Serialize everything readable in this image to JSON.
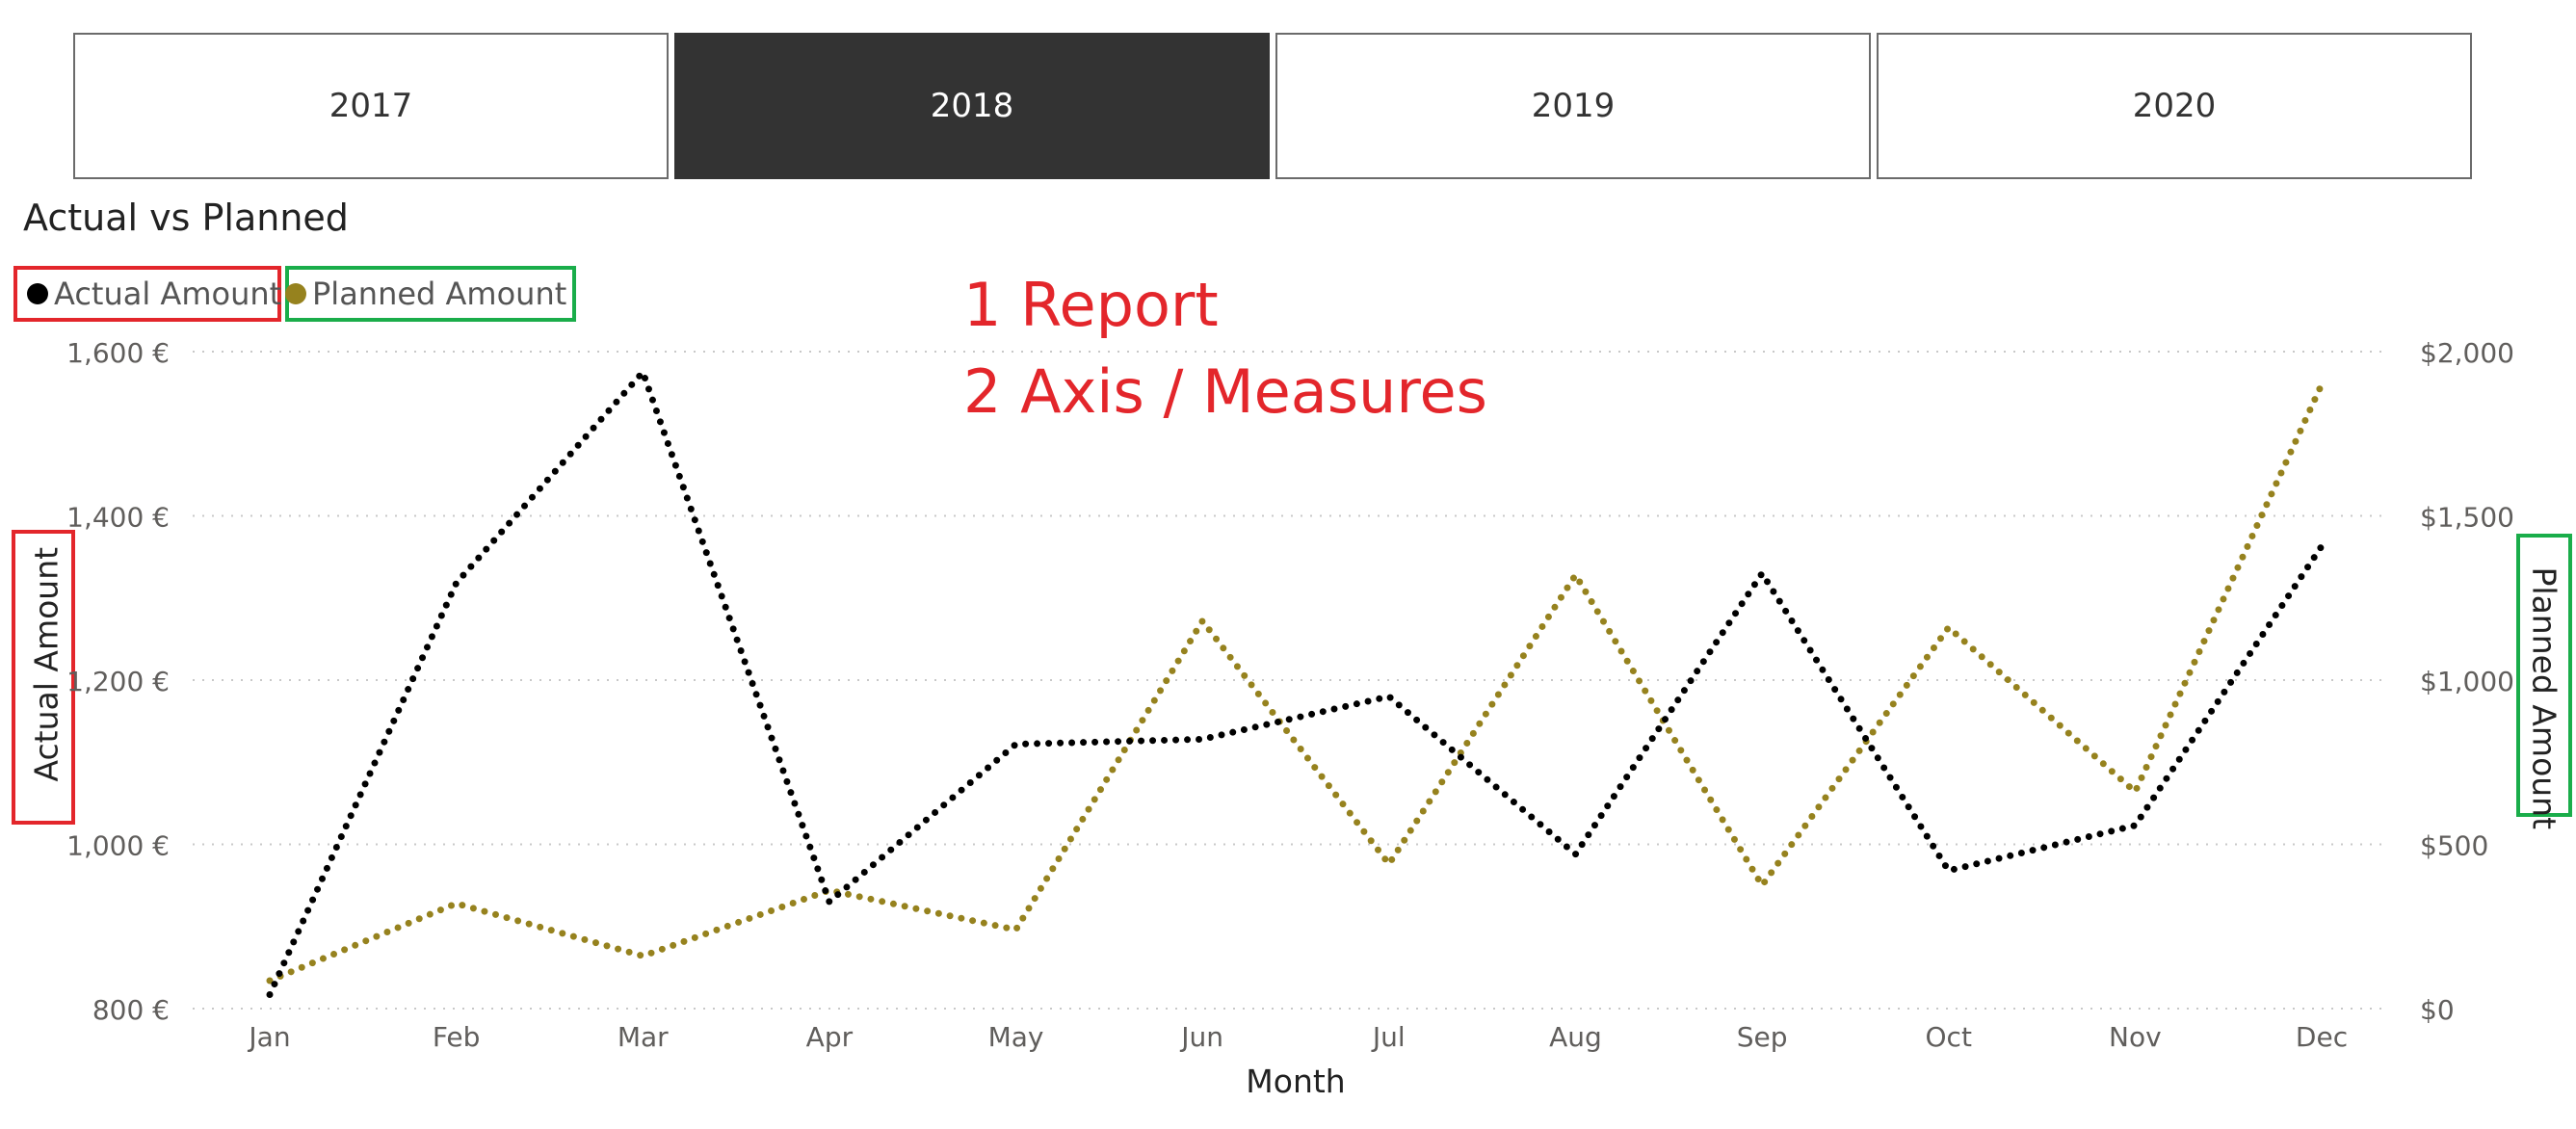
{
  "slicer": {
    "years": [
      "2017",
      "2018",
      "2019",
      "2020"
    ],
    "selected": "2018"
  },
  "visual": {
    "title": "Actual vs Planned"
  },
  "legend": {
    "actual_label": "Actual Amount",
    "planned_label": "Planned Amount"
  },
  "annotation": {
    "line1": "1 Report",
    "line2": "2 Axis / Measures"
  },
  "colors": {
    "actual": "#000000",
    "planned": "#96821e",
    "highlight_red": "#e3262b",
    "highlight_green": "#1aad4a",
    "selected_bg": "#333333"
  },
  "chart_data": {
    "type": "line",
    "title": "Actual vs Planned",
    "xlabel": "Month",
    "ylabel": "Actual Amount",
    "y2label": "Planned Amount",
    "categories": [
      "Jan",
      "Feb",
      "Mar",
      "Apr",
      "May",
      "Jun",
      "Jul",
      "Aug",
      "Sep",
      "Oct",
      "Nov",
      "Dec"
    ],
    "ylim": [
      800,
      1600
    ],
    "y2lim": [
      0,
      2000
    ],
    "yticks": [
      "800 €",
      "1,000 €",
      "1,200 €",
      "1,400 €",
      "1,600 €"
    ],
    "y2ticks": [
      "$0",
      "$500",
      "$1,000",
      "$1,500",
      "$2,000"
    ],
    "grid": true,
    "line_style": "dotted",
    "legend_position": "top-left",
    "series": [
      {
        "name": "Actual Amount",
        "axis": "left",
        "values": [
          817,
          1318,
          1575,
          930,
          1122,
          1128,
          1180,
          988,
          1330,
          968,
          1023,
          1363
        ]
      },
      {
        "name": "Planned Amount",
        "axis": "right",
        "values": [
          85,
          320,
          160,
          360,
          240,
          1180,
          440,
          1320,
          375,
          1160,
          660,
          1900
        ]
      }
    ]
  }
}
